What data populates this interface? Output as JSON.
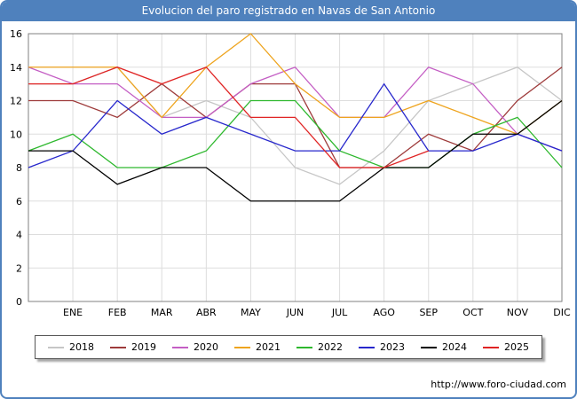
{
  "title": "Evolucion del paro registrado en Navas de San Antonio",
  "footer": {
    "url": "http://www.foro-ciudad.com"
  },
  "chart_data": {
    "type": "line",
    "title": "Evolucion del paro registrado en Navas de San Antonio",
    "categories": [
      "ENE",
      "FEB",
      "MAR",
      "ABR",
      "MAY",
      "JUN",
      "JUL",
      "AGO",
      "SEP",
      "OCT",
      "NOV",
      "DIC"
    ],
    "ylabel": "",
    "xlabel": "",
    "ylim": [
      0,
      16
    ],
    "ytick_step": 2,
    "grid": true,
    "legend_position": "bottom",
    "series": [
      {
        "name": "2018",
        "color": "#c6c6c6",
        "start_value": 13,
        "values": [
          13,
          14,
          11,
          12,
          11,
          8,
          7,
          9,
          12,
          13,
          14,
          12
        ]
      },
      {
        "name": "2019",
        "color": "#9e3b3b",
        "start_value": 12,
        "values": [
          12,
          11,
          13,
          11,
          13,
          13,
          8,
          8,
          10,
          9,
          12,
          14
        ]
      },
      {
        "name": "2020",
        "color": "#c45ec4",
        "start_value": 14,
        "values": [
          13,
          13,
          11,
          11,
          13,
          14,
          11,
          11,
          14,
          13,
          10,
          9
        ]
      },
      {
        "name": "2021",
        "color": "#eea41e",
        "start_value": 14,
        "values": [
          14,
          14,
          11,
          14,
          16,
          13,
          11,
          11,
          12,
          11,
          10,
          12
        ]
      },
      {
        "name": "2022",
        "color": "#2eb82e",
        "start_value": 9,
        "values": [
          10,
          8,
          8,
          9,
          12,
          12,
          9,
          8,
          8,
          10,
          11,
          8
        ]
      },
      {
        "name": "2023",
        "color": "#2727cc",
        "start_value": 8,
        "values": [
          9,
          12,
          10,
          11,
          10,
          9,
          9,
          13,
          9,
          9,
          10,
          9
        ]
      },
      {
        "name": "2024",
        "color": "#000000",
        "start_value": 9,
        "values": [
          9,
          7,
          8,
          8,
          6,
          6,
          6,
          8,
          8,
          10,
          10,
          12
        ]
      },
      {
        "name": "2025",
        "color": "#e02424",
        "start_value": 13,
        "values": [
          13,
          14,
          13,
          14,
          11,
          11,
          8,
          8,
          9,
          null,
          null,
          null
        ]
      }
    ]
  }
}
